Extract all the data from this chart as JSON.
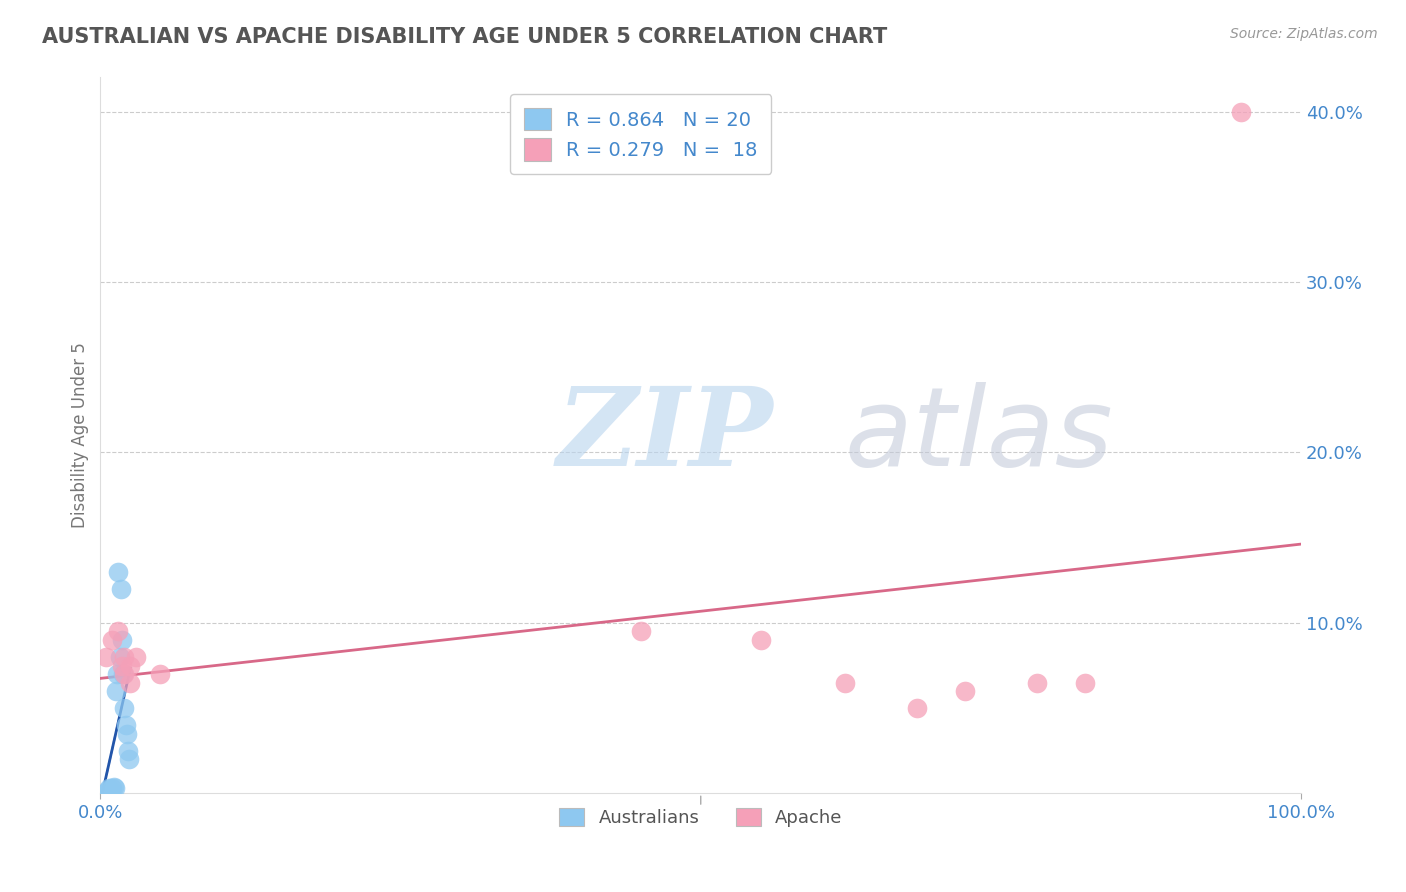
{
  "title": "AUSTRALIAN VS APACHE DISABILITY AGE UNDER 5 CORRELATION CHART",
  "source_text": "Source: ZipAtlas.com",
  "ylabel": "Disability Age Under 5",
  "watermark_zip": "ZIP",
  "watermark_atlas": "atlas",
  "xlim": [
    0.0,
    1.0
  ],
  "ylim": [
    0.0,
    0.42
  ],
  "yticks": [
    0.1,
    0.2,
    0.3,
    0.4
  ],
  "ytick_labels": [
    "10.0%",
    "20.0%",
    "30.0%",
    "40.0%"
  ],
  "xticks": [
    0.0,
    1.0
  ],
  "xtick_labels": [
    "0.0%",
    "100.0%"
  ],
  "australians_x": [
    0.005,
    0.006,
    0.007,
    0.008,
    0.009,
    0.01,
    0.011,
    0.012,
    0.013,
    0.014,
    0.015,
    0.016,
    0.017,
    0.018,
    0.019,
    0.02,
    0.021,
    0.022,
    0.023,
    0.024
  ],
  "australians_y": [
    0.001,
    0.002,
    0.003,
    0.001,
    0.002,
    0.003,
    0.004,
    0.003,
    0.06,
    0.07,
    0.13,
    0.08,
    0.12,
    0.09,
    0.07,
    0.05,
    0.04,
    0.035,
    0.025,
    0.02
  ],
  "apache_x": [
    0.005,
    0.01,
    0.015,
    0.018,
    0.02,
    0.02,
    0.025,
    0.025,
    0.03,
    0.05,
    0.45,
    0.55,
    0.62,
    0.68,
    0.72,
    0.78,
    0.82,
    0.95
  ],
  "apache_y": [
    0.08,
    0.09,
    0.095,
    0.075,
    0.07,
    0.08,
    0.075,
    0.065,
    0.08,
    0.07,
    0.095,
    0.09,
    0.065,
    0.05,
    0.06,
    0.065,
    0.065,
    0.4
  ],
  "australians_color": "#8EC8F0",
  "apache_color": "#F5A0B8",
  "australians_line_color": "#2255AA",
  "apache_line_color": "#D86888",
  "australians_R": 0.864,
  "australians_N": 20,
  "apache_R": 0.279,
  "apache_N": 18,
  "background_color": "#FFFFFF",
  "grid_color": "#CCCCCC",
  "title_color": "#555555",
  "axis_label_color": "#777777",
  "tick_color_blue": "#4488CC",
  "source_color": "#999999"
}
